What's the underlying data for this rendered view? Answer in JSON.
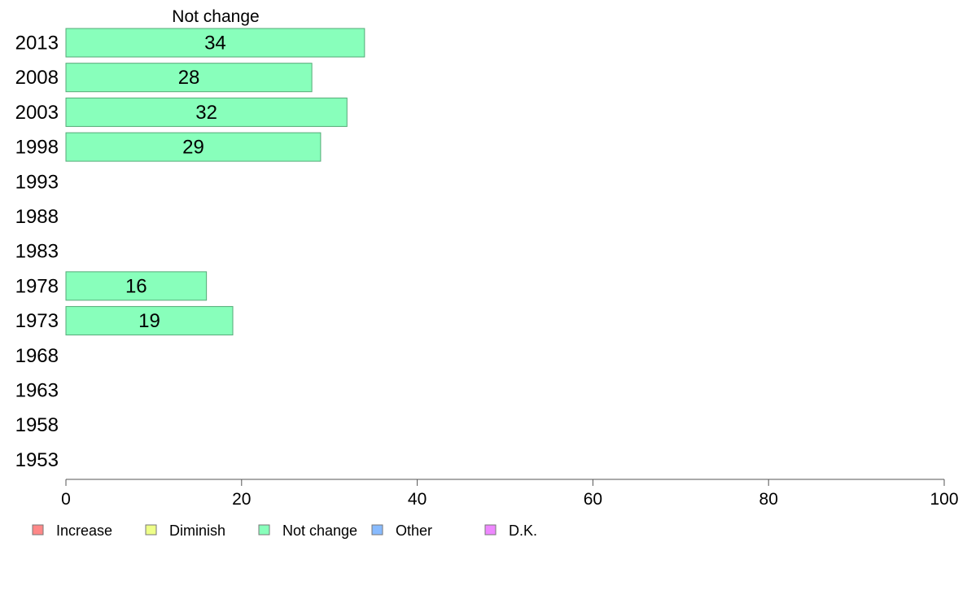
{
  "chart_data": {
    "type": "bar",
    "orientation": "horizontal",
    "title": "Not change",
    "categories": [
      "2013",
      "2008",
      "2003",
      "1998",
      "1993",
      "1988",
      "1983",
      "1978",
      "1973",
      "1968",
      "1963",
      "1958",
      "1953"
    ],
    "series": [
      {
        "name": "Not change",
        "color": "#88ffbb",
        "values": [
          34,
          28,
          32,
          29,
          null,
          null,
          null,
          16,
          19,
          null,
          null,
          null,
          null
        ]
      }
    ],
    "xlim": [
      0,
      100
    ],
    "xticks": [
      0,
      20,
      40,
      60,
      80,
      100
    ],
    "grid": false,
    "legend": {
      "placement": "bottom-left",
      "items": [
        {
          "label": "Increase",
          "color": "#ff8888"
        },
        {
          "label": "Diminish",
          "color": "#eeff88"
        },
        {
          "label": "Not change",
          "color": "#88ffbb"
        },
        {
          "label": "Other",
          "color": "#88bbff"
        },
        {
          "label": "D.K.",
          "color": "#ee88ff"
        }
      ]
    },
    "bar_stroke_color": "#55aa77",
    "axis_color": "#555555"
  }
}
